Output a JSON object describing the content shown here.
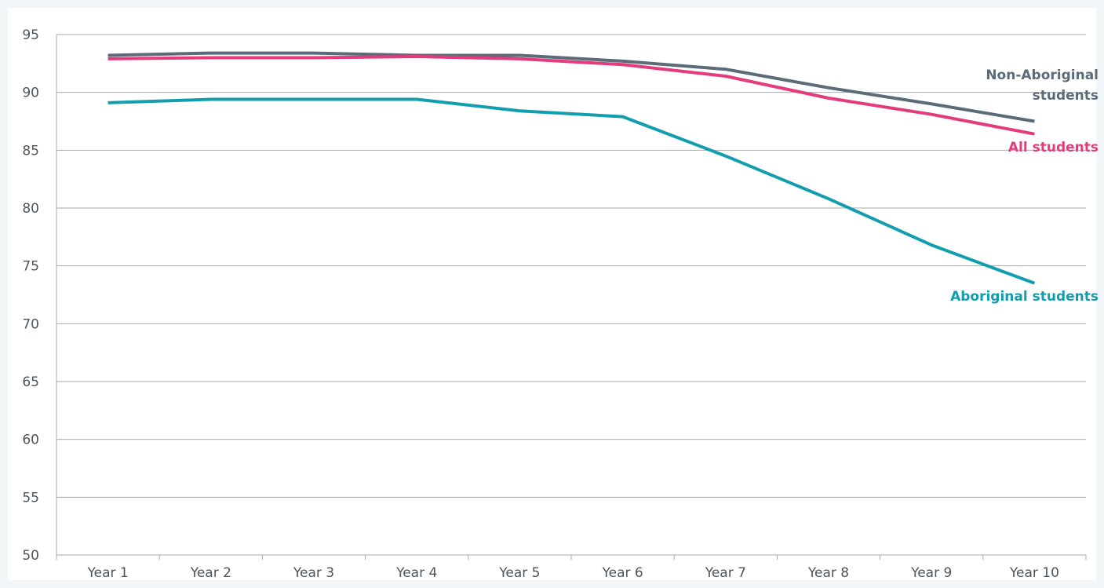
{
  "chart_data": {
    "type": "line",
    "title": "",
    "xlabel": "",
    "ylabel": "",
    "categories": [
      "Year 1",
      "Year 2",
      "Year 3",
      "Year 4",
      "Year 5",
      "Year 6",
      "Year 7",
      "Year 8",
      "Year 9",
      "Year 10"
    ],
    "ylim": [
      50,
      95
    ],
    "yticks": [
      "50",
      "55",
      "60",
      "65",
      "70",
      "75",
      "80",
      "85",
      "90",
      "95"
    ],
    "grid": true,
    "legend": "inline labels at line ends",
    "series": [
      {
        "name": "Non-Aboriginal students",
        "label_lines": [
          "Non-Aboriginal",
          "students"
        ],
        "color": "#5b6b79",
        "values": [
          93.2,
          93.4,
          93.4,
          93.2,
          93.2,
          92.7,
          92.0,
          90.4,
          89.0,
          87.5
        ]
      },
      {
        "name": "All students",
        "label_lines": [
          "All students"
        ],
        "color": "#e43b7c",
        "values": [
          92.9,
          93.0,
          93.0,
          93.1,
          92.9,
          92.4,
          91.4,
          89.5,
          88.1,
          86.4
        ]
      },
      {
        "name": "Aboriginal students",
        "label_lines": [
          "Aboriginal students"
        ],
        "color": "#139eb0",
        "values": [
          89.1,
          89.4,
          89.4,
          89.4,
          88.4,
          87.9,
          84.5,
          80.8,
          76.8,
          73.5
        ]
      }
    ]
  }
}
